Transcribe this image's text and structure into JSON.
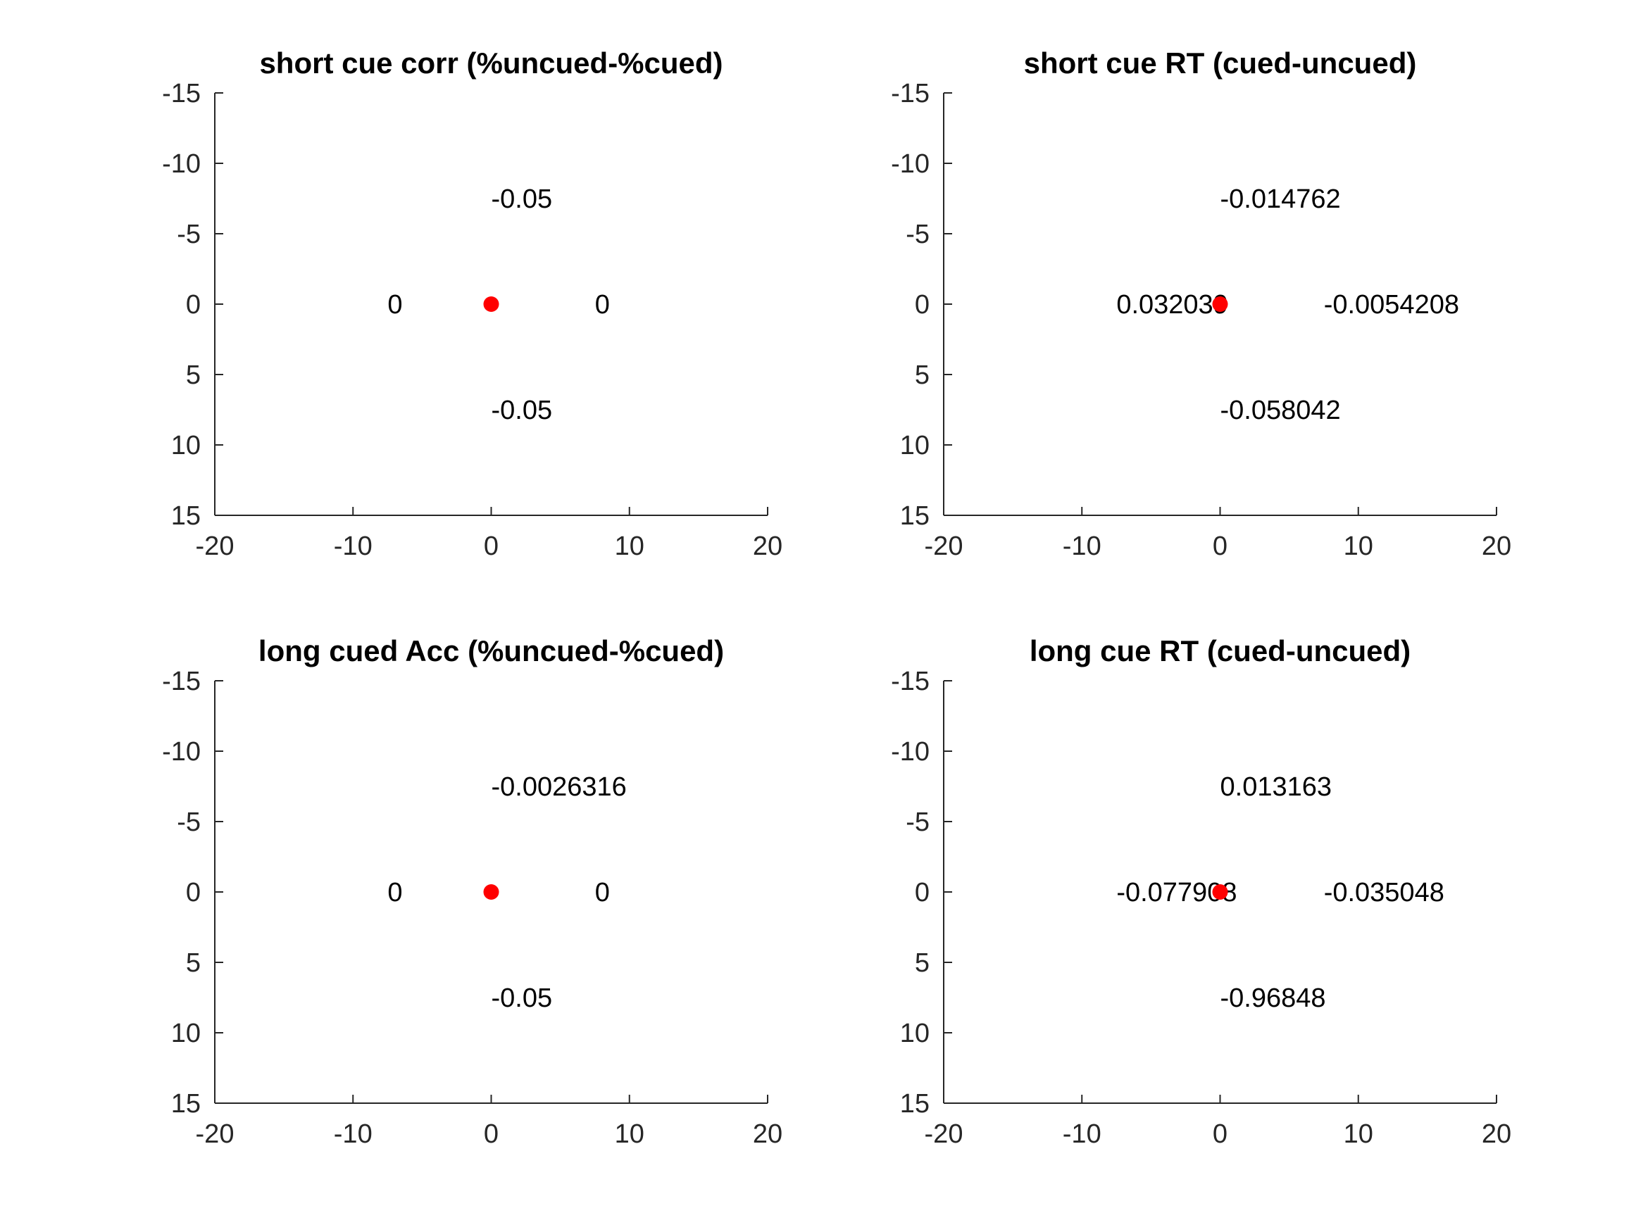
{
  "chart_data": [
    {
      "type": "scatter",
      "title": "short cue corr (%uncued-%cued)",
      "xlim": [
        -20,
        20
      ],
      "ylim": [
        -15,
        15
      ],
      "y_reversed": true,
      "xticks": [
        "-20",
        "-10",
        "0",
        "10",
        "20"
      ],
      "yticks": [
        "-15",
        "-10",
        "-5",
        "0",
        "5",
        "10",
        "15"
      ],
      "points": [
        {
          "x": 0,
          "y": 0,
          "color": "#ff0000"
        }
      ],
      "annotations": [
        {
          "x": 0,
          "y": -7.5,
          "text": "-0.05"
        },
        {
          "x": -7.5,
          "y": 0,
          "text": "0"
        },
        {
          "x": 7.5,
          "y": 0,
          "text": "0"
        },
        {
          "x": 0,
          "y": 7.5,
          "text": "-0.05"
        }
      ]
    },
    {
      "type": "scatter",
      "title": "short cue RT (cued-uncued)",
      "xlim": [
        -20,
        20
      ],
      "ylim": [
        -15,
        15
      ],
      "y_reversed": true,
      "xticks": [
        "-20",
        "-10",
        "0",
        "10",
        "20"
      ],
      "yticks": [
        "-15",
        "-10",
        "-5",
        "0",
        "5",
        "10",
        "15"
      ],
      "points": [
        {
          "x": 0,
          "y": 0,
          "color": "#ff0000"
        }
      ],
      "annotations": [
        {
          "x": 0,
          "y": -7.5,
          "text": "-0.014762"
        },
        {
          "x": -7.5,
          "y": 0,
          "text": "0.032039"
        },
        {
          "x": 7.5,
          "y": 0,
          "text": "-0.0054208"
        },
        {
          "x": 0,
          "y": 7.5,
          "text": "-0.058042"
        }
      ]
    },
    {
      "type": "scatter",
      "title": "long cued Acc (%uncued-%cued)",
      "xlim": [
        -20,
        20
      ],
      "ylim": [
        -15,
        15
      ],
      "y_reversed": true,
      "xticks": [
        "-20",
        "-10",
        "0",
        "10",
        "20"
      ],
      "yticks": [
        "-15",
        "-10",
        "-5",
        "0",
        "5",
        "10",
        "15"
      ],
      "points": [
        {
          "x": 0,
          "y": 0,
          "color": "#ff0000"
        }
      ],
      "annotations": [
        {
          "x": 0,
          "y": -7.5,
          "text": "-0.0026316"
        },
        {
          "x": -7.5,
          "y": 0,
          "text": "0"
        },
        {
          "x": 7.5,
          "y": 0,
          "text": "0"
        },
        {
          "x": 0,
          "y": 7.5,
          "text": "-0.05"
        }
      ]
    },
    {
      "type": "scatter",
      "title": "long cue RT (cued-uncued)",
      "xlim": [
        -20,
        20
      ],
      "ylim": [
        -15,
        15
      ],
      "y_reversed": true,
      "xticks": [
        "-20",
        "-10",
        "0",
        "10",
        "20"
      ],
      "yticks": [
        "-15",
        "-10",
        "-5",
        "0",
        "5",
        "10",
        "15"
      ],
      "points": [
        {
          "x": 0,
          "y": 0,
          "color": "#ff0000"
        }
      ],
      "annotations": [
        {
          "x": 0,
          "y": -7.5,
          "text": "0.013163"
        },
        {
          "x": -7.5,
          "y": 0,
          "text": "-0.077908"
        },
        {
          "x": 7.5,
          "y": 0,
          "text": "-0.035048"
        },
        {
          "x": 0,
          "y": 7.5,
          "text": "-0.96848"
        }
      ]
    }
  ]
}
